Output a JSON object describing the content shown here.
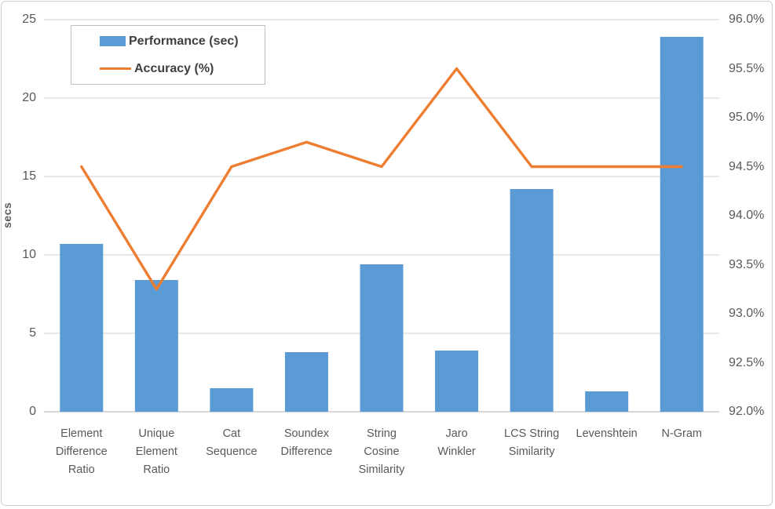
{
  "chart_data": {
    "type": "combo-bar-line",
    "title": "",
    "categories": [
      "Element Difference Ratio",
      "Unique Element Ratio",
      "Cat Sequence",
      "Soundex Difference",
      "String Cosine Similarity",
      "Jaro Winkler",
      "LCS String Similarity",
      "Levenshtein",
      "N-Gram"
    ],
    "category_lines": [
      [
        "Element",
        "Difference",
        "Ratio"
      ],
      [
        "Unique",
        "Element",
        "Ratio"
      ],
      [
        "Cat",
        "Sequence"
      ],
      [
        "Soundex",
        "Difference"
      ],
      [
        "String",
        "Cosine",
        "Similarity"
      ],
      [
        "Jaro",
        "Winkler"
      ],
      [
        "LCS String",
        "Similarity"
      ],
      [
        "Levenshtein"
      ],
      [
        "N-Gram"
      ]
    ],
    "series": [
      {
        "name": "Performance (sec)",
        "type": "bar",
        "axis": "left",
        "color": "#5B9BD5",
        "values": [
          10.7,
          8.4,
          1.5,
          3.8,
          9.4,
          3.9,
          14.2,
          1.3,
          23.9
        ]
      },
      {
        "name": "Accuracy (%)",
        "type": "line",
        "axis": "right",
        "color": "#ED7D31",
        "values": [
          94.5,
          93.25,
          94.5,
          94.75,
          94.5,
          95.5,
          94.5,
          94.5,
          94.5
        ]
      }
    ],
    "left_axis": {
      "label": "secs",
      "min": 0,
      "max": 25,
      "tick_values": [
        25,
        20,
        15,
        10,
        5,
        0
      ],
      "tick_labels": [
        "25",
        "20",
        "15",
        "10",
        "5",
        "0"
      ]
    },
    "right_axis": {
      "min": 92,
      "max": 96,
      "tick_values": [
        96,
        95.5,
        95,
        94.5,
        94,
        93.5,
        93,
        92.5,
        92
      ],
      "tick_labels": [
        "96.0%",
        "95.5%",
        "95.0%",
        "94.5%",
        "94.0%",
        "93.5%",
        "93.0%",
        "92.5%",
        "92.0%"
      ]
    },
    "legend": {
      "position": "top-left",
      "entries": [
        "Performance (sec)",
        "Accuracy (%)"
      ]
    },
    "grid": "horizontal",
    "colors": {
      "bar": "#5B9BD5",
      "line": "#ED7D31",
      "gridline": "#D9D9D9",
      "axis_line": "#BFBFBF",
      "axis_text": "#595959",
      "legend_text": "#404040"
    }
  }
}
